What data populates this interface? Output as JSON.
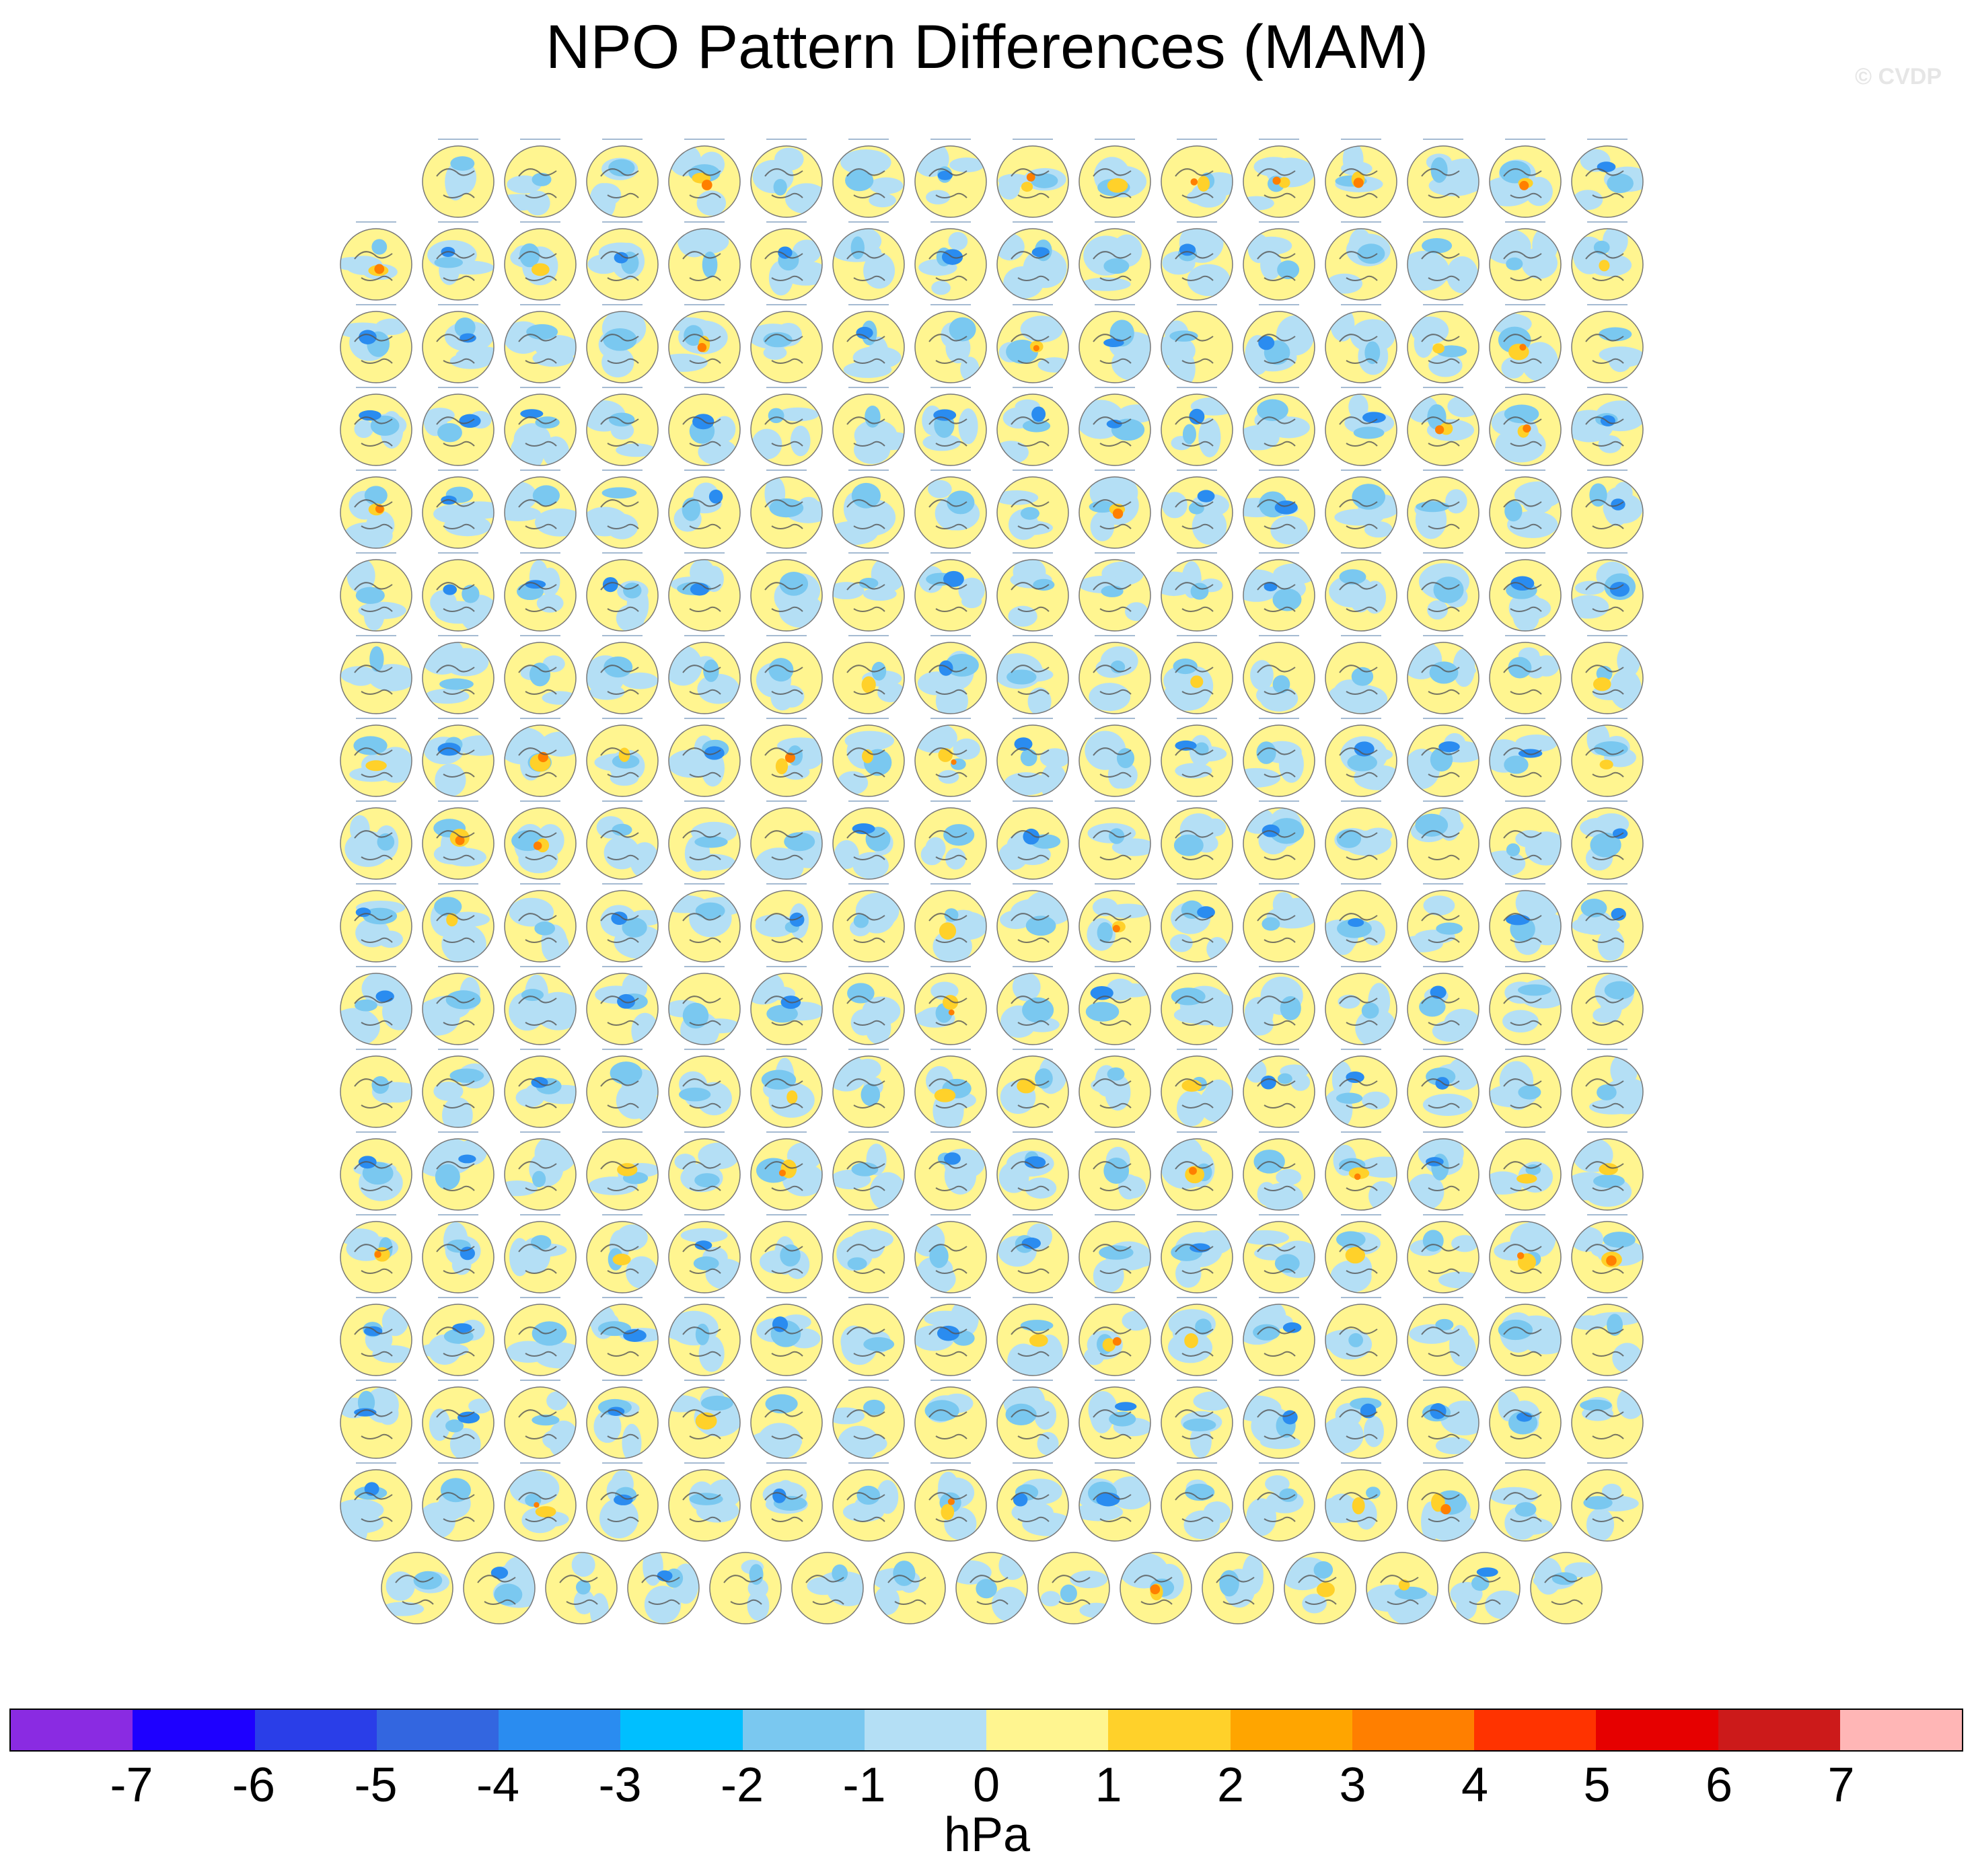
{
  "title": "NPO Pattern Differences (MAM)",
  "watermark": "© CVDP",
  "panels": {
    "row_counts": [
      15,
      16,
      16,
      16,
      16,
      16,
      16,
      16,
      16,
      16,
      16,
      16,
      16,
      16,
      16,
      16,
      16,
      15
    ],
    "total": 286
  },
  "colorbar": {
    "colors": [
      "#8a2be2",
      "#1e00ff",
      "#2a3ee8",
      "#3366e0",
      "#2a8cf0",
      "#00bfff",
      "#7ac8f0",
      "#b4dff5",
      "#fff590",
      "#ffd12a",
      "#ffa500",
      "#ff7f00",
      "#ff3300",
      "#e60000",
      "#cc1a1a",
      "#ffb6b6"
    ],
    "tick_labels": [
      "-7",
      "-6",
      "-5",
      "-4",
      "-3",
      "-2",
      "-1",
      "0",
      "1",
      "2",
      "3",
      "4",
      "5",
      "6",
      "7"
    ],
    "units": "hPa"
  },
  "palette": {
    "land_line": "#555555",
    "frame": "#777777",
    "panel_label": "#6b8fb5"
  }
}
